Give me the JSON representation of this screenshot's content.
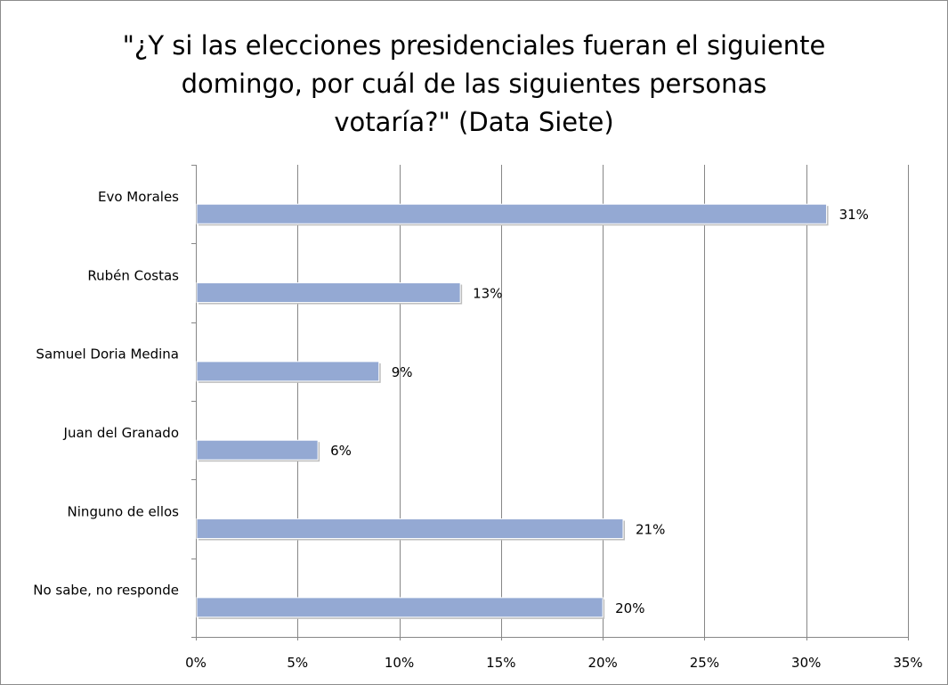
{
  "chart_data": {
    "type": "bar",
    "orientation": "horizontal",
    "title_lines": [
      "\"¿Y si las elecciones presidenciales fueran el siguiente",
      "domingo, por cuál de las siguientes personas",
      "votaría?\" (Data Siete)"
    ],
    "categories": [
      "Evo Morales",
      "Rubén Costas",
      "Samuel Doria Medina",
      "Juan del Granado",
      "Ninguno de ellos",
      "No sabe, no responde"
    ],
    "values": [
      31,
      13,
      9,
      6,
      21,
      20
    ],
    "data_labels": [
      "31%",
      "13%",
      "9%",
      "6%",
      "21%",
      "20%"
    ],
    "xlim": [
      0,
      35
    ],
    "xticks": [
      0,
      5,
      10,
      15,
      20,
      25,
      30,
      35
    ],
    "xtick_labels": [
      "0%",
      "5%",
      "10%",
      "15%",
      "20%",
      "25%",
      "30%",
      "35%"
    ],
    "xlabel": "",
    "ylabel": "",
    "grid": "vertical",
    "legend": "none",
    "colors": {
      "bar": "#94a9d3",
      "bar_shadow": "#bdbdbd",
      "grid": "#878787",
      "axis": "#878787"
    }
  }
}
